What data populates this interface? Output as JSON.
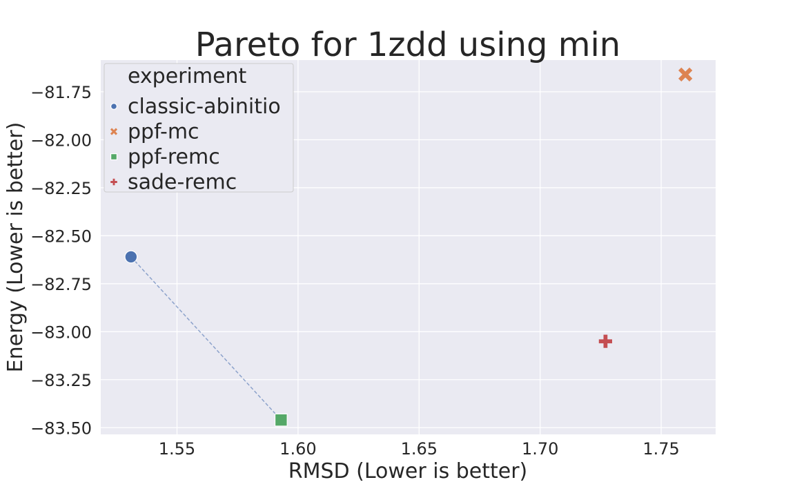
{
  "chart_data": {
    "type": "scatter",
    "title": "Pareto for 1zdd using min",
    "xlabel": "RMSD (Lower is better)",
    "ylabel": "Energy (Lower is better)",
    "xlim": [
      1.5185,
      1.7725
    ],
    "ylim": [
      -83.535,
      -81.585
    ],
    "xticks": [
      1.55,
      1.6,
      1.65,
      1.7,
      1.75
    ],
    "xtick_labels": [
      "1.55",
      "1.60",
      "1.65",
      "1.70",
      "1.75"
    ],
    "yticks": [
      -81.75,
      -82.0,
      -82.25,
      -82.5,
      -82.75,
      -83.0,
      -83.25,
      -83.5
    ],
    "ytick_labels": [
      "−81.75",
      "−82.00",
      "−82.25",
      "−82.50",
      "−82.75",
      "−83.00",
      "−83.25",
      "−83.50"
    ],
    "grid": true,
    "legend": {
      "title": "experiment",
      "placement": "upper-left"
    },
    "series": [
      {
        "name": "classic-abinitio",
        "marker": "circle",
        "color": "#4c72b0",
        "points": [
          {
            "x": 1.531,
            "y": -82.61
          }
        ]
      },
      {
        "name": "ppf-mc",
        "marker": "x",
        "color": "#dd8452",
        "points": [
          {
            "x": 1.76,
            "y": -81.66
          }
        ]
      },
      {
        "name": "ppf-remc",
        "marker": "square",
        "color": "#55a868",
        "points": [
          {
            "x": 1.593,
            "y": -83.46
          }
        ]
      },
      {
        "name": "sade-remc",
        "marker": "plus",
        "color": "#c44e52",
        "points": [
          {
            "x": 1.727,
            "y": -83.05
          }
        ]
      }
    ],
    "pareto_front": {
      "color": "#4c72b0",
      "style": "dashed",
      "points": [
        {
          "x": 1.531,
          "y": -82.61
        },
        {
          "x": 1.593,
          "y": -83.46
        }
      ]
    }
  }
}
